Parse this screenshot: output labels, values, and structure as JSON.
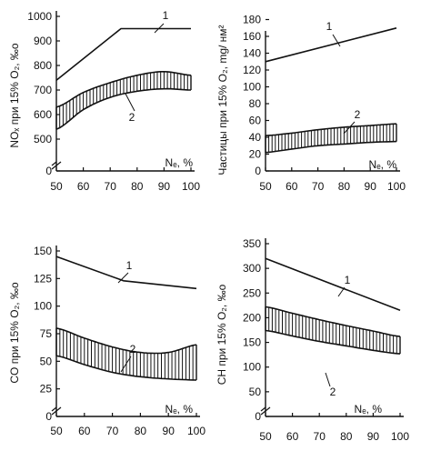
{
  "chart_data": [
    {
      "type": "line",
      "ylabel": "NOₓ при 15% O₂, ‰o",
      "xlabel": "Nₑ, %",
      "xlim": [
        50,
        100
      ],
      "ylim": [
        0,
        1000
      ],
      "xticks": [
        "50",
        "60",
        "70",
        "80",
        "90",
        "100"
      ],
      "yticks": [
        {
          "v": 0,
          "t": "0"
        },
        {
          "v": 500,
          "t": "500"
        },
        {
          "v": 600,
          "t": "600"
        },
        {
          "v": 700,
          "t": "700"
        },
        {
          "v": 800,
          "t": "800"
        },
        {
          "v": 900,
          "t": "900"
        },
        {
          "v": 1000,
          "t": "1000"
        }
      ],
      "axis_break": true,
      "curves": [
        {
          "label": "1",
          "x": [
            50,
            74,
            100
          ],
          "y": [
            740,
            950,
            950
          ]
        },
        {
          "label": "2",
          "band": true,
          "x": [
            50,
            60,
            70,
            80,
            90,
            100
          ],
          "upper": [
            630,
            690,
            730,
            760,
            775,
            760
          ],
          "lower": [
            540,
            620,
            670,
            695,
            705,
            700
          ]
        }
      ]
    },
    {
      "type": "line",
      "ylabel": "Частицы при 15% O₂, mg/ нм²",
      "xlabel": "Nₑ, %",
      "xlim": [
        50,
        100
      ],
      "ylim": [
        0,
        180
      ],
      "xticks": [
        "50",
        "60",
        "70",
        "80",
        "90",
        "100"
      ],
      "yticks": [
        {
          "v": 0,
          "t": "0"
        },
        {
          "v": 20,
          "t": "20"
        },
        {
          "v": 40,
          "t": "40"
        },
        {
          "v": 60,
          "t": "60"
        },
        {
          "v": 80,
          "t": "80"
        },
        {
          "v": 100,
          "t": "100"
        },
        {
          "v": 120,
          "t": "120"
        },
        {
          "v": 140,
          "t": "140"
        },
        {
          "v": 160,
          "t": "160"
        },
        {
          "v": 180,
          "t": "180"
        }
      ],
      "axis_break": false,
      "curves": [
        {
          "label": "1",
          "x": [
            50,
            100
          ],
          "y": [
            130,
            170
          ]
        },
        {
          "label": "2",
          "band": true,
          "x": [
            50,
            60,
            70,
            80,
            90,
            100
          ],
          "upper": [
            42,
            45,
            49,
            52,
            54,
            56
          ],
          "lower": [
            22,
            26,
            30,
            32,
            34,
            35
          ]
        }
      ]
    },
    {
      "type": "line",
      "ylabel": "CO при 15% O₂, ‰o",
      "xlabel": "Nₑ, %",
      "xlim": [
        50,
        100
      ],
      "ylim": [
        0,
        150
      ],
      "xticks": [
        "50",
        "60",
        "70",
        "80",
        "90",
        "100"
      ],
      "yticks": [
        {
          "v": 0,
          "t": "0"
        },
        {
          "v": 25,
          "t": "25"
        },
        {
          "v": 50,
          "t": "50"
        },
        {
          "v": 75,
          "t": "75"
        },
        {
          "v": 100,
          "t": "100"
        },
        {
          "v": 125,
          "t": "125"
        },
        {
          "v": 150,
          "t": "150"
        }
      ],
      "axis_break": true,
      "curves": [
        {
          "label": "1",
          "x": [
            50,
            74,
            100
          ],
          "y": [
            145,
            123,
            116
          ]
        },
        {
          "label": "2",
          "band": true,
          "x": [
            50,
            60,
            70,
            80,
            90,
            100
          ],
          "upper": [
            80,
            71,
            63,
            58,
            58,
            65
          ],
          "lower": [
            55,
            47,
            40,
            36,
            34,
            33
          ]
        }
      ]
    },
    {
      "type": "line",
      "ylabel": "CH при 15% O₂, ‰o",
      "xlabel": "Nₑ, %",
      "xlim": [
        50,
        100
      ],
      "ylim": [
        0,
        350
      ],
      "xticks": [
        "50",
        "60",
        "70",
        "80",
        "90",
        "100"
      ],
      "yticks": [
        {
          "v": 0,
          "t": "0"
        },
        {
          "v": 50,
          "t": "50"
        },
        {
          "v": 100,
          "t": "100"
        },
        {
          "v": 150,
          "t": "150"
        },
        {
          "v": 200,
          "t": "200"
        },
        {
          "v": 250,
          "t": "250"
        },
        {
          "v": 300,
          "t": "300"
        },
        {
          "v": 350,
          "t": "350"
        }
      ],
      "axis_break": true,
      "curves": [
        {
          "label": "1",
          "x": [
            50,
            100
          ],
          "y": [
            320,
            215
          ]
        },
        {
          "label": "2",
          "band": true,
          "x": [
            50,
            60,
            70,
            80,
            90,
            100
          ],
          "upper": [
            222,
            209,
            196,
            184,
            173,
            162
          ],
          "lower": [
            174,
            163,
            152,
            143,
            134,
            127
          ]
        }
      ]
    }
  ]
}
